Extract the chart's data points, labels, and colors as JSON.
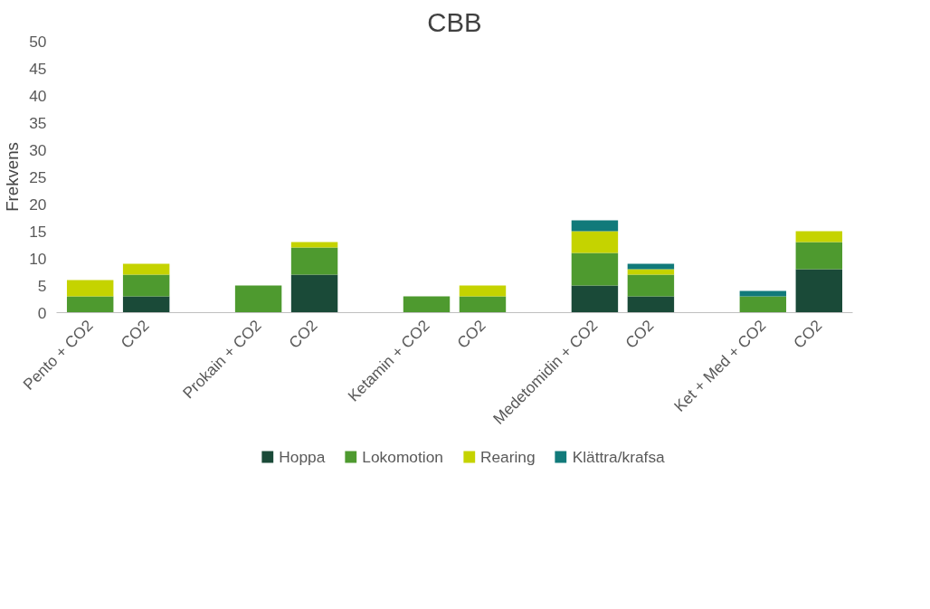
{
  "chart_data": {
    "type": "bar",
    "title": "CBB",
    "ylabel": "Frekvens",
    "stacked": true,
    "categories": [
      "Pento + CO2",
      "CO2",
      null,
      "Prokain + CO2",
      "CO2",
      null,
      "Ketamin + CO2",
      "CO2",
      null,
      "Medetomidin + CO2",
      "CO2",
      null,
      "Ket + Med + CO2",
      "CO2"
    ],
    "series": [
      {
        "name": "Hoppa",
        "color": "#1a4a38",
        "values": [
          0,
          3,
          null,
          0,
          7,
          null,
          0,
          0,
          null,
          5,
          3,
          null,
          0,
          8
        ]
      },
      {
        "name": "Lokomotion",
        "color": "#4e9a2f",
        "values": [
          3,
          4,
          null,
          5,
          5,
          null,
          3,
          3,
          null,
          6,
          4,
          null,
          3,
          5
        ]
      },
      {
        "name": "Rearing",
        "color": "#c5d300",
        "values": [
          3,
          2,
          null,
          0,
          1,
          null,
          0,
          2,
          null,
          4,
          1,
          null,
          0,
          2
        ]
      },
      {
        "name": "Klättra/krafsa",
        "color": "#117a7a",
        "values": [
          0,
          0,
          null,
          0,
          0,
          null,
          0,
          0,
          null,
          2,
          1,
          null,
          1,
          0
        ]
      }
    ],
    "ylim": [
      0,
      50
    ],
    "yticks": [
      0,
      5,
      10,
      15,
      20,
      25,
      30,
      35,
      40,
      45,
      50
    ],
    "grid": false,
    "legend": "bottom"
  }
}
